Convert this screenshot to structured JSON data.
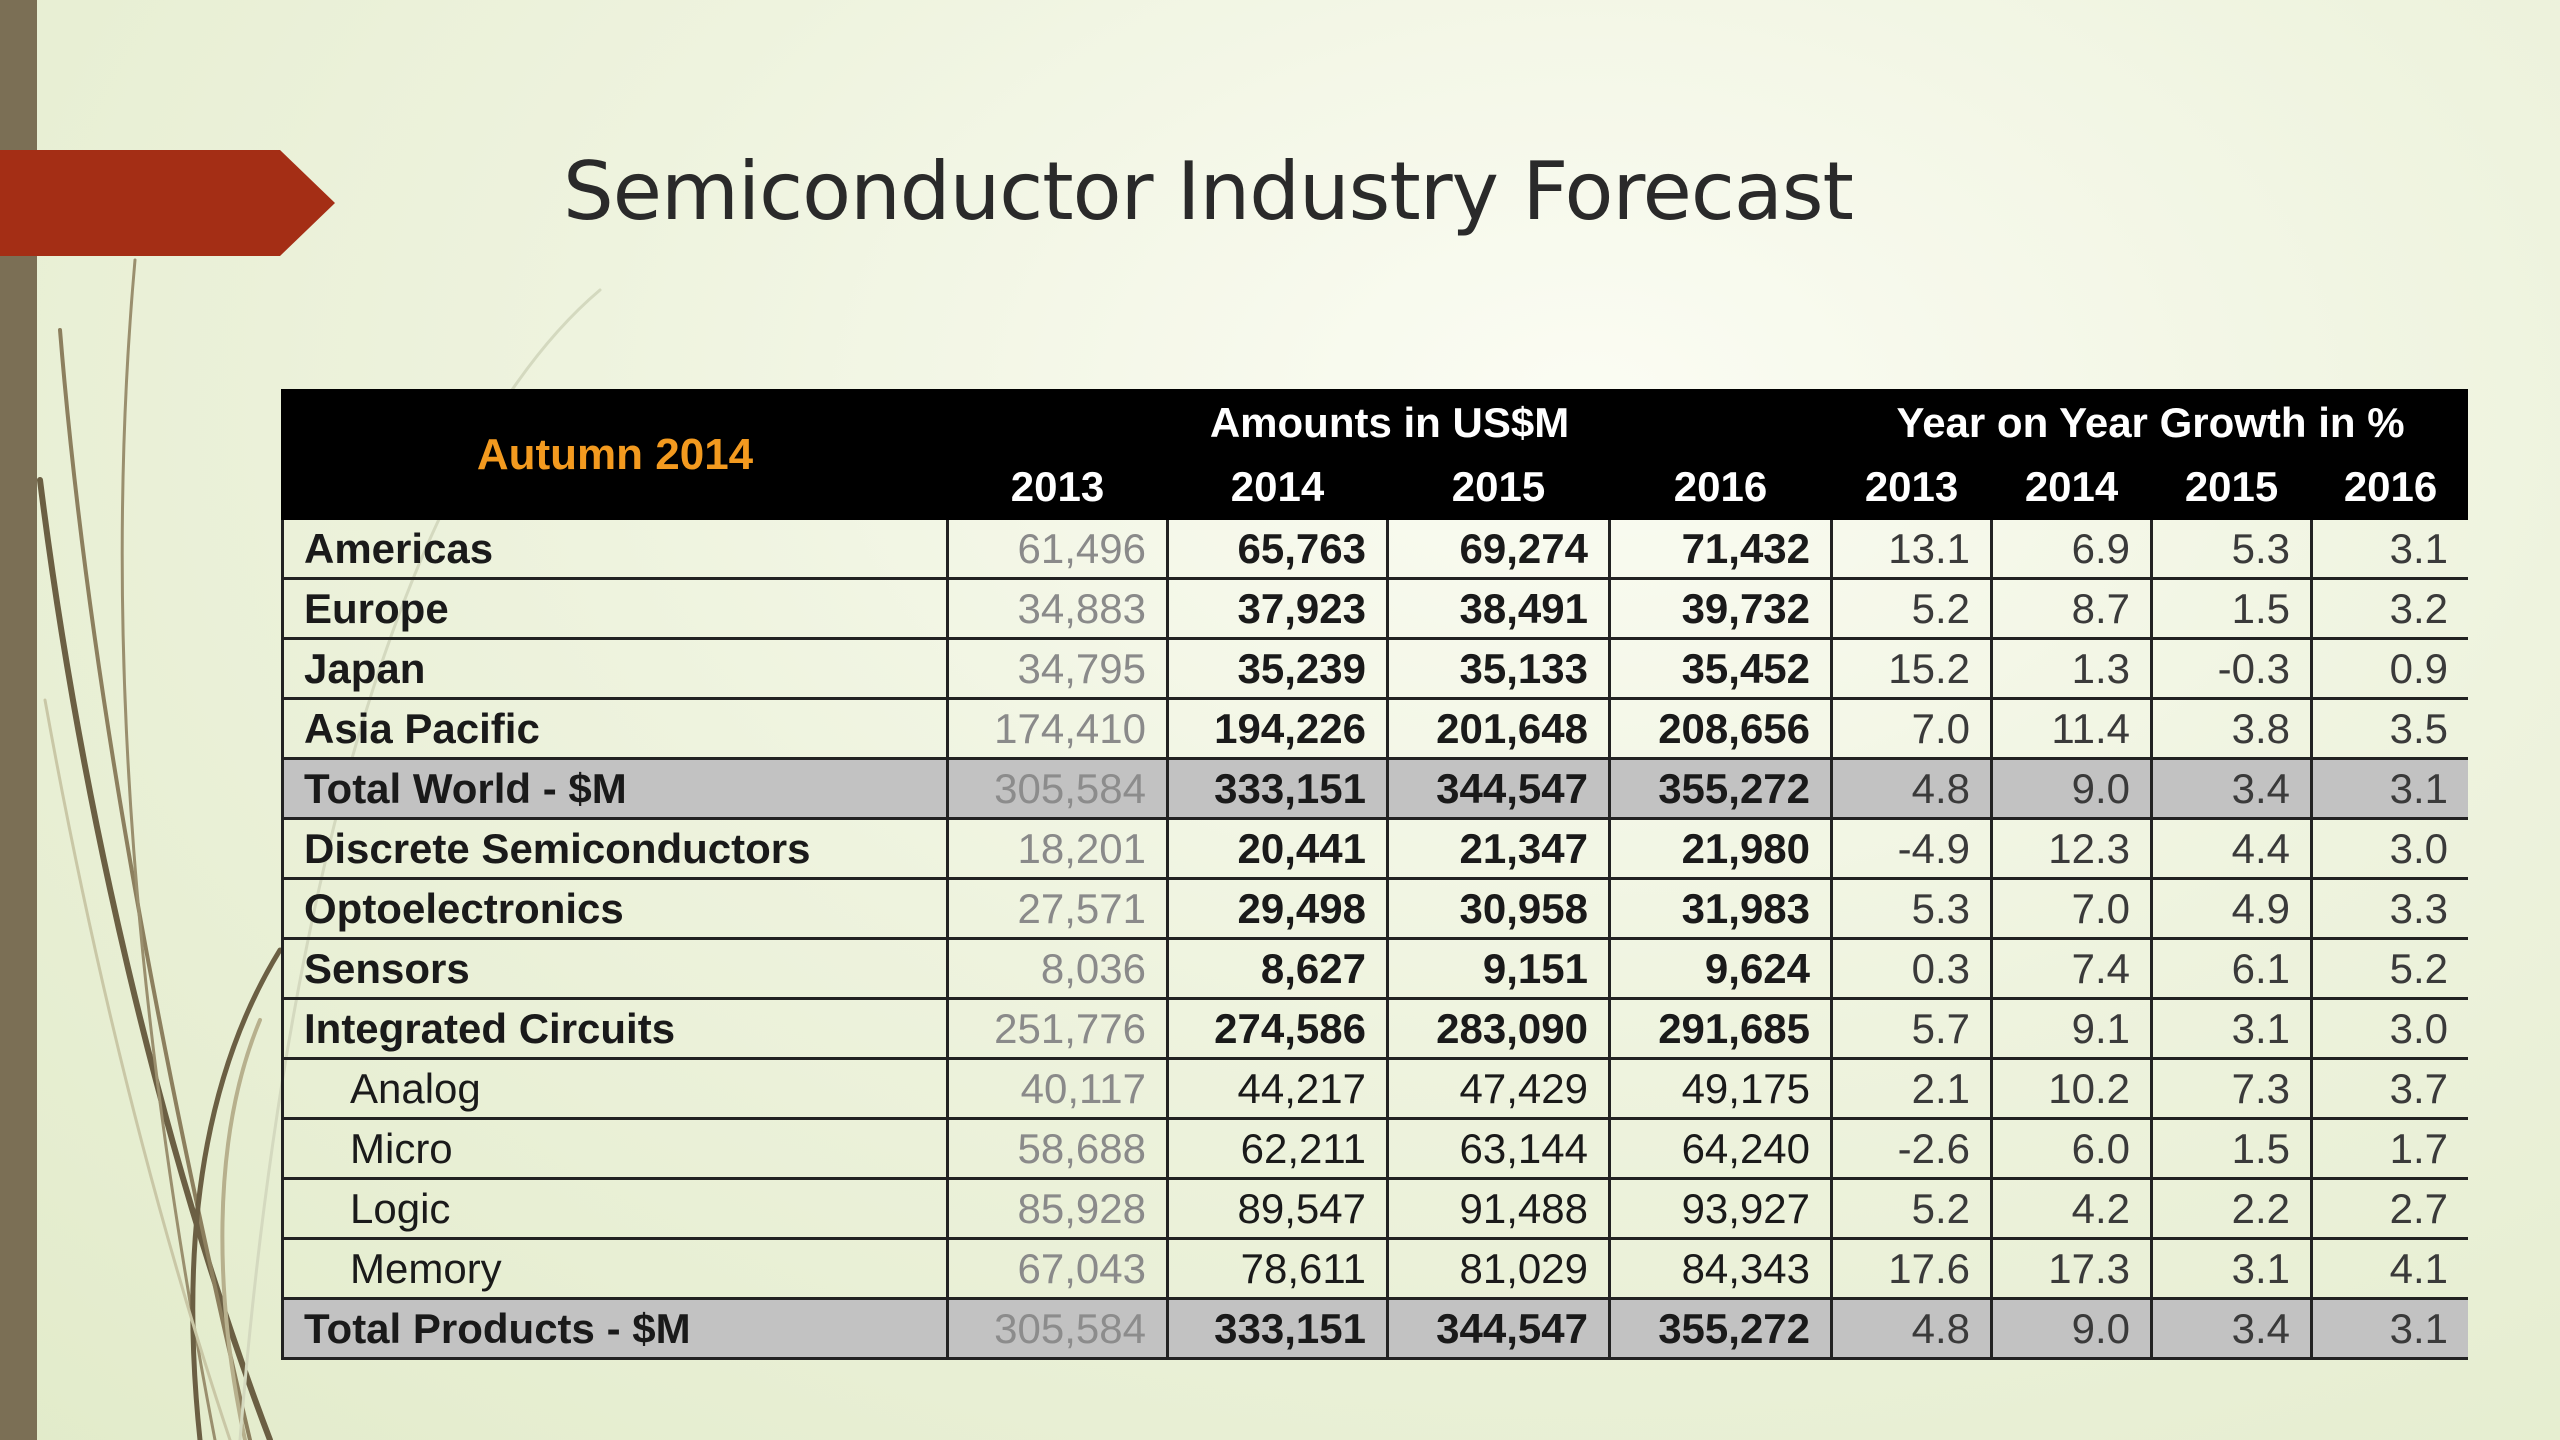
{
  "slide": {
    "title": "Semiconductor Industry Forecast"
  },
  "table": {
    "corner_label": "Autumn 2014",
    "group_amounts": "Amounts in US$M",
    "group_growth": "Year on Year Growth in %",
    "years": [
      "2013",
      "2014",
      "2015",
      "2016"
    ],
    "rows": [
      {
        "label": "Americas",
        "indent": false,
        "total": false,
        "amounts": [
          "61,496",
          "65,763",
          "69,274",
          "71,432"
        ],
        "growth": [
          "13.1",
          "6.9",
          "5.3",
          "3.1"
        ]
      },
      {
        "label": "Europe",
        "indent": false,
        "total": false,
        "amounts": [
          "34,883",
          "37,923",
          "38,491",
          "39,732"
        ],
        "growth": [
          "5.2",
          "8.7",
          "1.5",
          "3.2"
        ]
      },
      {
        "label": "Japan",
        "indent": false,
        "total": false,
        "amounts": [
          "34,795",
          "35,239",
          "35,133",
          "35,452"
        ],
        "growth": [
          "15.2",
          "1.3",
          "-0.3",
          "0.9"
        ]
      },
      {
        "label": "Asia Pacific",
        "indent": false,
        "total": false,
        "amounts": [
          "174,410",
          "194,226",
          "201,648",
          "208,656"
        ],
        "growth": [
          "7.0",
          "11.4",
          "3.8",
          "3.5"
        ]
      },
      {
        "label": "Total World - $M",
        "indent": false,
        "total": true,
        "amounts": [
          "305,584",
          "333,151",
          "344,547",
          "355,272"
        ],
        "growth": [
          "4.8",
          "9.0",
          "3.4",
          "3.1"
        ]
      },
      {
        "label": "Discrete Semiconductors",
        "indent": false,
        "total": false,
        "amounts": [
          "18,201",
          "20,441",
          "21,347",
          "21,980"
        ],
        "growth": [
          "-4.9",
          "12.3",
          "4.4",
          "3.0"
        ]
      },
      {
        "label": "Optoelectronics",
        "indent": false,
        "total": false,
        "amounts": [
          "27,571",
          "29,498",
          "30,958",
          "31,983"
        ],
        "growth": [
          "5.3",
          "7.0",
          "4.9",
          "3.3"
        ]
      },
      {
        "label": "Sensors",
        "indent": false,
        "total": false,
        "amounts": [
          "8,036",
          "8,627",
          "9,151",
          "9,624"
        ],
        "growth": [
          "0.3",
          "7.4",
          "6.1",
          "5.2"
        ]
      },
      {
        "label": "Integrated Circuits",
        "indent": false,
        "total": false,
        "amounts": [
          "251,776",
          "274,586",
          "283,090",
          "291,685"
        ],
        "growth": [
          "5.7",
          "9.1",
          "3.1",
          "3.0"
        ]
      },
      {
        "label": "Analog",
        "indent": true,
        "total": false,
        "amounts": [
          "40,117",
          "44,217",
          "47,429",
          "49,175"
        ],
        "growth": [
          "2.1",
          "10.2",
          "7.3",
          "3.7"
        ]
      },
      {
        "label": "Micro",
        "indent": true,
        "total": false,
        "amounts": [
          "58,688",
          "62,211",
          "63,144",
          "64,240"
        ],
        "growth": [
          "-2.6",
          "6.0",
          "1.5",
          "1.7"
        ]
      },
      {
        "label": "Logic",
        "indent": true,
        "total": false,
        "amounts": [
          "85,928",
          "89,547",
          "91,488",
          "93,927"
        ],
        "growth": [
          "5.2",
          "4.2",
          "2.2",
          "2.7"
        ]
      },
      {
        "label": "Memory",
        "indent": true,
        "total": false,
        "amounts": [
          "67,043",
          "78,611",
          "81,029",
          "84,343"
        ],
        "growth": [
          "17.6",
          "17.3",
          "3.1",
          "4.1"
        ]
      },
      {
        "label": "Total Products - $M",
        "indent": false,
        "total": true,
        "amounts": [
          "305,584",
          "333,151",
          "344,547",
          "355,272"
        ],
        "growth": [
          "4.8",
          "9.0",
          "3.4",
          "3.1"
        ]
      }
    ]
  },
  "colors": {
    "accent_marker": "#a42e15",
    "corner_label": "#f39a1f",
    "header_bg": "#000000",
    "total_row_bg": "#c2c2c2",
    "side_bar": "#7b6f55"
  }
}
